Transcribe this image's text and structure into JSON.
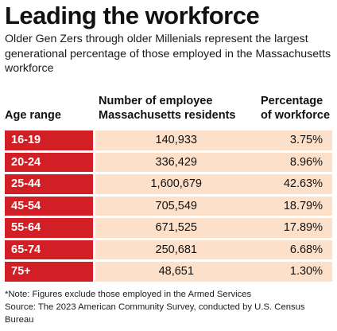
{
  "chart_data": {
    "type": "table",
    "title": "Leading the workforce",
    "subtitle": "Older Gen Zers through older Millenials represent the largest generational percentage of those employed in the Massachusetts workforce",
    "columns": {
      "age": "Age range",
      "employees": "Number of employee Massachusetts residents",
      "percentage": "Percentage of workforce"
    },
    "rows": [
      {
        "age": "16-19",
        "employees": "140,933",
        "percentage": "3.75%"
      },
      {
        "age": "20-24",
        "employees": "336,429",
        "percentage": "8.96%"
      },
      {
        "age": "25-44",
        "employees": "1,600,679",
        "percentage": "42.63%"
      },
      {
        "age": "45-54",
        "employees": "705,549",
        "percentage": "18.79%"
      },
      {
        "age": "55-64",
        "employees": "671,525",
        "percentage": "17.89%"
      },
      {
        "age": "65-74",
        "employees": "250,681",
        "percentage": "6.68%"
      },
      {
        "age": "75+",
        "employees": "48,651",
        "percentage": "1.30%"
      }
    ],
    "note": "*Note: Figures exclude those employed in the Armed Services",
    "source": "Source: The 2023 American Community Survey, conducted by U.S. Census Bureau"
  },
  "colors": {
    "age_cell": "#d21f26",
    "value_cell": "#fde0c9"
  }
}
